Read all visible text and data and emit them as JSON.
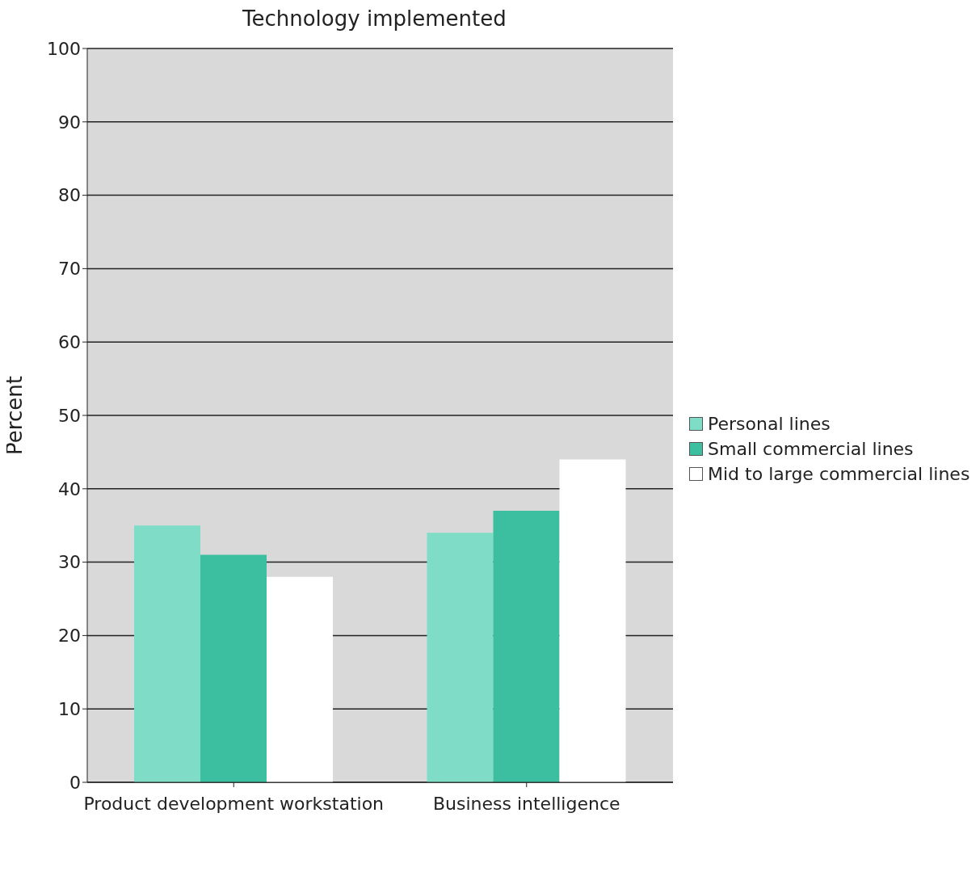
{
  "chart_data": {
    "type": "bar",
    "title": "Technology implemented",
    "ylabel": "Percent",
    "categories": [
      "Product development workstation",
      "Business intelligence"
    ],
    "series": [
      {
        "name": "Personal lines",
        "color": "#7fdcc6",
        "values": [
          35,
          34
        ]
      },
      {
        "name": "Small commercial lines",
        "color": "#3cbfa0",
        "values": [
          31,
          37
        ]
      },
      {
        "name": "Mid to large commercial lines",
        "color": "#ffffff",
        "values": [
          28,
          44
        ]
      }
    ],
    "ylim": [
      0,
      100
    ],
    "yticks": [
      0,
      10,
      20,
      30,
      40,
      50,
      60,
      70,
      80,
      90,
      100
    ],
    "grid": "y",
    "legend": "right"
  }
}
